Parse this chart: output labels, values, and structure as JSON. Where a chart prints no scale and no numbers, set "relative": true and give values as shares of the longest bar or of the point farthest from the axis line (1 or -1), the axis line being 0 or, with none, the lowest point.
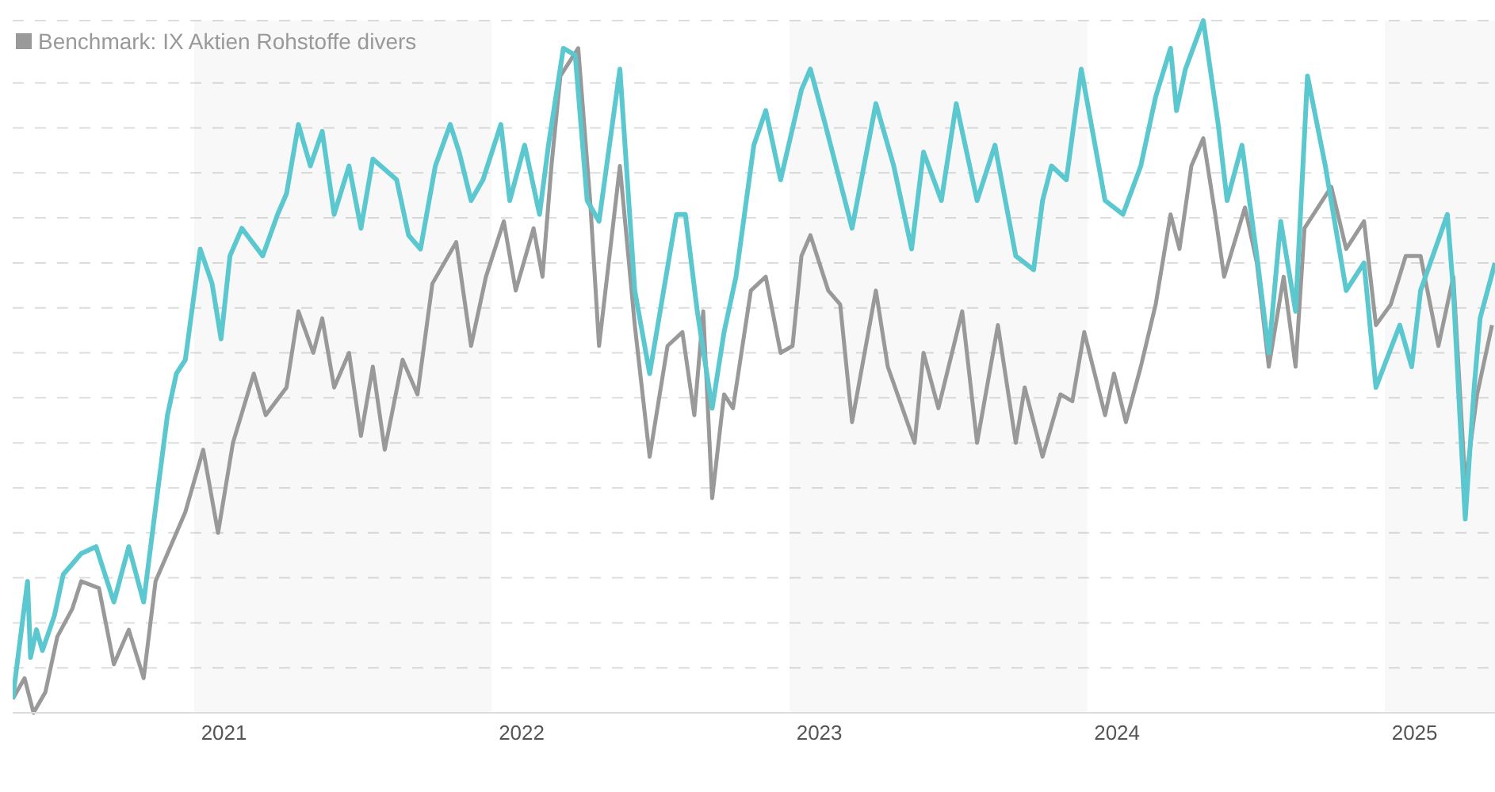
{
  "chart_data": {
    "type": "line",
    "relative": true,
    "xlim": [
      2020.39,
      2025.37
    ],
    "xticks": [
      {
        "value": 2021.1,
        "label": "2021"
      },
      {
        "value": 2022.1,
        "label": "2022"
      },
      {
        "value": 2023.1,
        "label": "2023"
      },
      {
        "value": 2024.1,
        "label": "2024"
      },
      {
        "value": 2025.1,
        "label": "2025"
      }
    ],
    "bands": [
      {
        "axis": "x",
        "from": 2021,
        "to": 2022,
        "color": "#f8f8f8"
      },
      {
        "axis": "x",
        "from": 2023,
        "to": 2024,
        "color": "#f8f8f8"
      },
      {
        "axis": "x",
        "from": 2025,
        "to": 2025.37,
        "color": "#f8f8f8"
      }
    ],
    "grid": true,
    "legend": "top left",
    "marker": "none",
    "line_style": "solid",
    "series": [
      {
        "color": "#5bc8d0",
        "x": [
          2020.39,
          2020.44,
          2020.45,
          2020.47,
          2020.49,
          2020.53,
          2020.56,
          2020.62,
          2020.67,
          2020.73,
          2020.78,
          2020.83,
          2020.88,
          2020.91,
          2020.94,
          2020.97,
          2021.02,
          2021.06,
          2021.09,
          2021.12,
          2021.16,
          2021.23,
          2021.28,
          2021.31,
          2021.35,
          2021.39,
          2021.43,
          2021.47,
          2021.52,
          2021.56,
          2021.6,
          2021.68,
          2021.72,
          2021.76,
          2021.81,
          2021.86,
          2021.89,
          2021.93,
          2021.97,
          2022.03,
          2022.06,
          2022.11,
          2022.16,
          2022.19,
          2022.24,
          2022.28,
          2022.32,
          2022.36,
          2022.43,
          2022.48,
          2022.53,
          2022.62,
          2022.65,
          2022.69,
          2022.74,
          2022.78,
          2022.82,
          2022.88,
          2022.92,
          2022.97,
          2023.04,
          2023.07,
          2023.12,
          2023.21,
          2023.29,
          2023.35,
          2023.41,
          2023.45,
          2023.51,
          2023.56,
          2023.63,
          2023.69,
          2023.76,
          2023.82,
          2023.85,
          2023.88,
          2023.93,
          2023.98,
          2024.06,
          2024.12,
          2024.18,
          2024.23,
          2024.28,
          2024.3,
          2024.33,
          2024.39,
          2024.44,
          2024.47,
          2024.52,
          2024.57,
          2024.61,
          2024.65,
          2024.7,
          2024.74,
          2024.8,
          2024.87,
          2024.93,
          2024.97,
          2025.05,
          2025.09,
          2025.12,
          2025.21,
          2025.23,
          2025.27,
          2025.3,
          2025.32,
          2025.37
        ],
        "values": [
          0.02,
          0.19,
          0.08,
          0.12,
          0.09,
          0.14,
          0.2,
          0.23,
          0.24,
          0.16,
          0.24,
          0.16,
          0.33,
          0.43,
          0.49,
          0.51,
          0.67,
          0.62,
          0.54,
          0.66,
          0.7,
          0.66,
          0.72,
          0.75,
          0.85,
          0.79,
          0.84,
          0.72,
          0.79,
          0.7,
          0.8,
          0.77,
          0.69,
          0.67,
          0.79,
          0.85,
          0.81,
          0.74,
          0.77,
          0.85,
          0.74,
          0.82,
          0.72,
          0.82,
          0.96,
          0.95,
          0.74,
          0.71,
          0.93,
          0.61,
          0.49,
          0.72,
          0.72,
          0.58,
          0.44,
          0.55,
          0.63,
          0.82,
          0.87,
          0.77,
          0.9,
          0.93,
          0.85,
          0.7,
          0.88,
          0.79,
          0.67,
          0.81,
          0.74,
          0.88,
          0.74,
          0.82,
          0.66,
          0.64,
          0.74,
          0.79,
          0.77,
          0.93,
          0.74,
          0.72,
          0.79,
          0.89,
          0.96,
          0.87,
          0.93,
          1,
          0.85,
          0.74,
          0.82,
          0.66,
          0.52,
          0.71,
          0.58,
          0.92,
          0.79,
          0.61,
          0.65,
          0.47,
          0.56,
          0.5,
          0.61,
          0.72,
          0.61,
          0.28,
          0.47,
          0.57,
          0.65
        ]
      },
      {
        "name": "Benchmark: IX Aktien Rohstoffe divers",
        "color": "#999999",
        "x": [
          2020.39,
          2020.43,
          2020.46,
          2020.5,
          2020.54,
          2020.59,
          2020.62,
          2020.68,
          2020.73,
          2020.78,
          2020.83,
          2020.87,
          2020.92,
          2020.97,
          2021.03,
          2021.08,
          2021.13,
          2021.2,
          2021.24,
          2021.31,
          2021.35,
          2021.4,
          2021.43,
          2021.47,
          2021.52,
          2021.56,
          2021.6,
          2021.64,
          2021.7,
          2021.75,
          2021.8,
          2021.88,
          2021.93,
          2021.98,
          2022.04,
          2022.08,
          2022.14,
          2022.17,
          2022.2,
          2022.23,
          2022.29,
          2022.33,
          2022.36,
          2022.43,
          2022.48,
          2022.53,
          2022.59,
          2022.64,
          2022.68,
          2022.71,
          2022.74,
          2022.78,
          2022.81,
          2022.87,
          2022.92,
          2022.97,
          2023.01,
          2023.04,
          2023.07,
          2023.13,
          2023.17,
          2023.21,
          2023.29,
          2023.33,
          2023.42,
          2023.45,
          2023.5,
          2023.58,
          2023.63,
          2023.7,
          2023.76,
          2023.79,
          2023.85,
          2023.91,
          2023.95,
          2023.99,
          2024.06,
          2024.09,
          2024.13,
          2024.18,
          2024.23,
          2024.28,
          2024.31,
          2024.35,
          2024.39,
          2024.43,
          2024.46,
          2024.53,
          2024.57,
          2024.61,
          2024.66,
          2024.7,
          2024.73,
          2024.82,
          2024.87,
          2024.93,
          2024.97,
          2025.02,
          2025.07,
          2025.12,
          2025.18,
          2025.23,
          2025.27,
          2025.31,
          2025.36
        ],
        "values": [
          0.02,
          0.05,
          0,
          0.03,
          0.11,
          0.15,
          0.19,
          0.18,
          0.07,
          0.12,
          0.05,
          0.19,
          0.24,
          0.29,
          0.38,
          0.26,
          0.39,
          0.49,
          0.43,
          0.47,
          0.58,
          0.52,
          0.57,
          0.47,
          0.52,
          0.4,
          0.5,
          0.38,
          0.51,
          0.46,
          0.62,
          0.68,
          0.53,
          0.63,
          0.71,
          0.61,
          0.7,
          0.63,
          0.79,
          0.92,
          0.96,
          0.74,
          0.53,
          0.79,
          0.56,
          0.37,
          0.53,
          0.55,
          0.43,
          0.58,
          0.31,
          0.46,
          0.44,
          0.61,
          0.63,
          0.52,
          0.53,
          0.66,
          0.69,
          0.61,
          0.59,
          0.42,
          0.61,
          0.5,
          0.39,
          0.52,
          0.44,
          0.58,
          0.39,
          0.56,
          0.39,
          0.47,
          0.37,
          0.46,
          0.45,
          0.55,
          0.43,
          0.49,
          0.42,
          0.5,
          0.59,
          0.72,
          0.67,
          0.79,
          0.83,
          0.72,
          0.63,
          0.73,
          0.65,
          0.5,
          0.63,
          0.5,
          0.7,
          0.76,
          0.67,
          0.71,
          0.56,
          0.59,
          0.66,
          0.66,
          0.53,
          0.63,
          0.33,
          0.46,
          0.56
        ]
      }
    ]
  }
}
